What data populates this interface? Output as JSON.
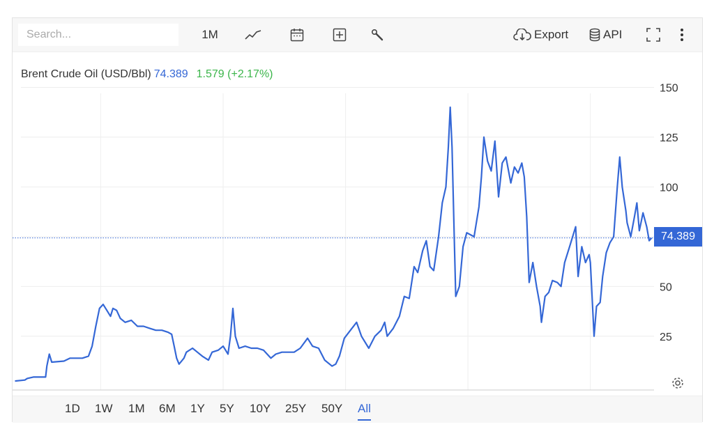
{
  "toolbar": {
    "search_placeholder": "Search...",
    "interval_label": "1M",
    "export_label": "Export",
    "api_label": "API"
  },
  "legend": {
    "name": "Brent Crude Oil (USD/Bbl)",
    "value": "74.389",
    "change": "1.579 (+2.17%)"
  },
  "price_tag": "74.389",
  "colors": {
    "line": "#3467d6",
    "up": "#3bb54a",
    "grid": "#eeeeee"
  },
  "ranges": [
    {
      "label": "1D",
      "active": false
    },
    {
      "label": "1W",
      "active": false
    },
    {
      "label": "1M",
      "active": false
    },
    {
      "label": "6M",
      "active": false
    },
    {
      "label": "1Y",
      "active": false
    },
    {
      "label": "5Y",
      "active": false
    },
    {
      "label": "10Y",
      "active": false
    },
    {
      "label": "25Y",
      "active": false
    },
    {
      "label": "50Y",
      "active": false
    },
    {
      "label": "All",
      "active": true
    }
  ],
  "chart_data": {
    "type": "line",
    "title": "Brent Crude Oil (USD/Bbl)",
    "xlabel": "",
    "ylabel": "",
    "xlim": [
      1972.8,
      2025.2
    ],
    "ylim": [
      -2,
      168
    ],
    "x_ticks": [
      1980,
      1990,
      2000,
      2010,
      2020
    ],
    "y_ticks": [
      25,
      50,
      75,
      100,
      125,
      150
    ],
    "y_tick_labels": [
      "25",
      "50",
      "",
      "100",
      "125",
      "150"
    ],
    "last_value": 74.389,
    "grid": true,
    "series": [
      {
        "values": [
          [
            1973.0,
            2.5
          ],
          [
            1973.8,
            3.0
          ],
          [
            1974.0,
            3.8
          ],
          [
            1974.5,
            4.5
          ],
          [
            1975.5,
            4.5
          ],
          [
            1975.6,
            10
          ],
          [
            1975.8,
            16
          ],
          [
            1976.0,
            12
          ],
          [
            1977.0,
            12.5
          ],
          [
            1977.5,
            14
          ],
          [
            1978.5,
            14
          ],
          [
            1979.0,
            15
          ],
          [
            1979.3,
            20
          ],
          [
            1979.6,
            30
          ],
          [
            1979.9,
            39
          ],
          [
            1980.2,
            41
          ],
          [
            1980.5,
            38
          ],
          [
            1980.8,
            35
          ],
          [
            1981.0,
            39
          ],
          [
            1981.3,
            38
          ],
          [
            1981.6,
            34
          ],
          [
            1982.0,
            32
          ],
          [
            1982.5,
            33
          ],
          [
            1983.0,
            30
          ],
          [
            1983.5,
            30
          ],
          [
            1984.0,
            29
          ],
          [
            1984.5,
            28
          ],
          [
            1985.0,
            28
          ],
          [
            1985.5,
            27
          ],
          [
            1985.8,
            26
          ],
          [
            1986.0,
            20
          ],
          [
            1986.2,
            14
          ],
          [
            1986.4,
            11
          ],
          [
            1986.8,
            14
          ],
          [
            1987.0,
            17
          ],
          [
            1987.5,
            19
          ],
          [
            1987.9,
            17
          ],
          [
            1988.3,
            15
          ],
          [
            1988.8,
            13
          ],
          [
            1989.1,
            17
          ],
          [
            1989.6,
            18
          ],
          [
            1990.0,
            20
          ],
          [
            1990.4,
            16
          ],
          [
            1990.6,
            25
          ],
          [
            1990.8,
            39
          ],
          [
            1991.0,
            25
          ],
          [
            1991.3,
            19
          ],
          [
            1991.8,
            20
          ],
          [
            1992.3,
            19
          ],
          [
            1992.8,
            19
          ],
          [
            1993.3,
            18
          ],
          [
            1993.9,
            14
          ],
          [
            1994.3,
            16
          ],
          [
            1994.8,
            17
          ],
          [
            1995.3,
            17
          ],
          [
            1995.8,
            17
          ],
          [
            1996.3,
            19
          ],
          [
            1996.9,
            24
          ],
          [
            1997.3,
            20
          ],
          [
            1997.8,
            19
          ],
          [
            1998.3,
            13
          ],
          [
            1998.9,
            10
          ],
          [
            1999.2,
            11
          ],
          [
            1999.5,
            15
          ],
          [
            1999.9,
            24
          ],
          [
            2000.4,
            28
          ],
          [
            2000.9,
            32
          ],
          [
            2001.3,
            25
          ],
          [
            2001.9,
            19
          ],
          [
            2002.4,
            25
          ],
          [
            2002.9,
            28
          ],
          [
            2003.2,
            32
          ],
          [
            2003.4,
            25
          ],
          [
            2003.9,
            29
          ],
          [
            2004.4,
            35
          ],
          [
            2004.8,
            45
          ],
          [
            2005.2,
            44
          ],
          [
            2005.6,
            60
          ],
          [
            2005.9,
            57
          ],
          [
            2006.3,
            68
          ],
          [
            2006.6,
            73
          ],
          [
            2006.9,
            60
          ],
          [
            2007.2,
            58
          ],
          [
            2007.6,
            75
          ],
          [
            2007.9,
            92
          ],
          [
            2008.2,
            100
          ],
          [
            2008.4,
            120
          ],
          [
            2008.55,
            140
          ],
          [
            2008.7,
            120
          ],
          [
            2008.9,
            70
          ],
          [
            2009.0,
            45
          ],
          [
            2009.3,
            50
          ],
          [
            2009.6,
            70
          ],
          [
            2009.9,
            77
          ],
          [
            2010.2,
            76
          ],
          [
            2010.5,
            75
          ],
          [
            2010.9,
            90
          ],
          [
            2011.1,
            105
          ],
          [
            2011.3,
            125
          ],
          [
            2011.6,
            113
          ],
          [
            2011.9,
            108
          ],
          [
            2012.2,
            123
          ],
          [
            2012.5,
            95
          ],
          [
            2012.8,
            112
          ],
          [
            2013.1,
            115
          ],
          [
            2013.5,
            102
          ],
          [
            2013.8,
            110
          ],
          [
            2014.1,
            107
          ],
          [
            2014.4,
            112
          ],
          [
            2014.6,
            105
          ],
          [
            2014.8,
            85
          ],
          [
            2015.0,
            52
          ],
          [
            2015.3,
            62
          ],
          [
            2015.6,
            50
          ],
          [
            2015.9,
            40
          ],
          [
            2016.0,
            32
          ],
          [
            2016.3,
            45
          ],
          [
            2016.6,
            47
          ],
          [
            2016.9,
            53
          ],
          [
            2017.3,
            52
          ],
          [
            2017.6,
            50
          ],
          [
            2017.9,
            62
          ],
          [
            2018.3,
            70
          ],
          [
            2018.8,
            80
          ],
          [
            2019.0,
            55
          ],
          [
            2019.3,
            70
          ],
          [
            2019.6,
            62
          ],
          [
            2019.9,
            66
          ],
          [
            2020.0,
            62
          ],
          [
            2020.3,
            25
          ],
          [
            2020.5,
            40
          ],
          [
            2020.8,
            42
          ],
          [
            2021.0,
            55
          ],
          [
            2021.3,
            67
          ],
          [
            2021.6,
            72
          ],
          [
            2021.9,
            75
          ],
          [
            2022.2,
            100
          ],
          [
            2022.4,
            115
          ],
          [
            2022.6,
            100
          ],
          [
            2022.9,
            88
          ],
          [
            2023.0,
            82
          ],
          [
            2023.3,
            75
          ],
          [
            2023.6,
            85
          ],
          [
            2023.8,
            92
          ],
          [
            2024.0,
            78
          ],
          [
            2024.3,
            87
          ],
          [
            2024.6,
            80
          ],
          [
            2024.8,
            73
          ],
          [
            2025.0,
            74.389
          ]
        ]
      }
    ]
  }
}
